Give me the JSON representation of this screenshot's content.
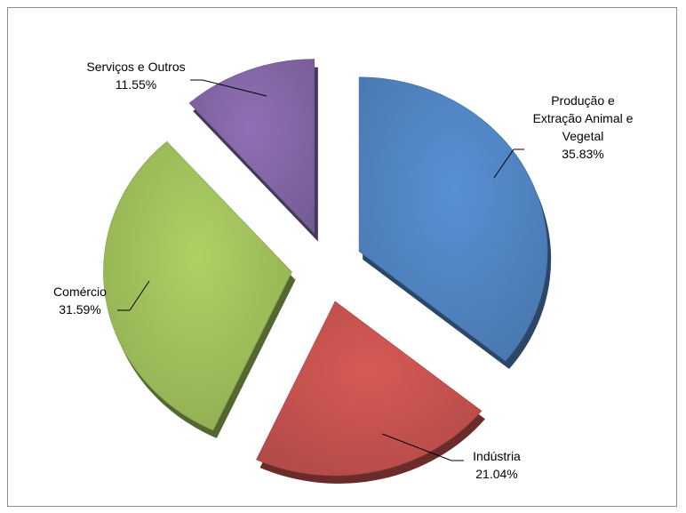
{
  "chart_data": {
    "type": "pie",
    "title": "",
    "exploded": true,
    "style": "3d-tilted",
    "legend": "none",
    "slices": [
      {
        "label_lines": [
          "Produção e",
          "Extração Animal e",
          "Vegetal"
        ],
        "value": 35.83,
        "value_text": "35.83%",
        "color": "#4f81bd"
      },
      {
        "label_lines": [
          "Indústria"
        ],
        "value": 21.04,
        "value_text": "21.04%",
        "color": "#c0504d"
      },
      {
        "label_lines": [
          "Comércio"
        ],
        "value": 31.59,
        "value_text": "31.59%",
        "color": "#9bbb59"
      },
      {
        "label_lines": [
          "Serviços e Outros"
        ],
        "value": 11.55,
        "value_text": "11.55%",
        "color": "#8064a2"
      }
    ]
  }
}
